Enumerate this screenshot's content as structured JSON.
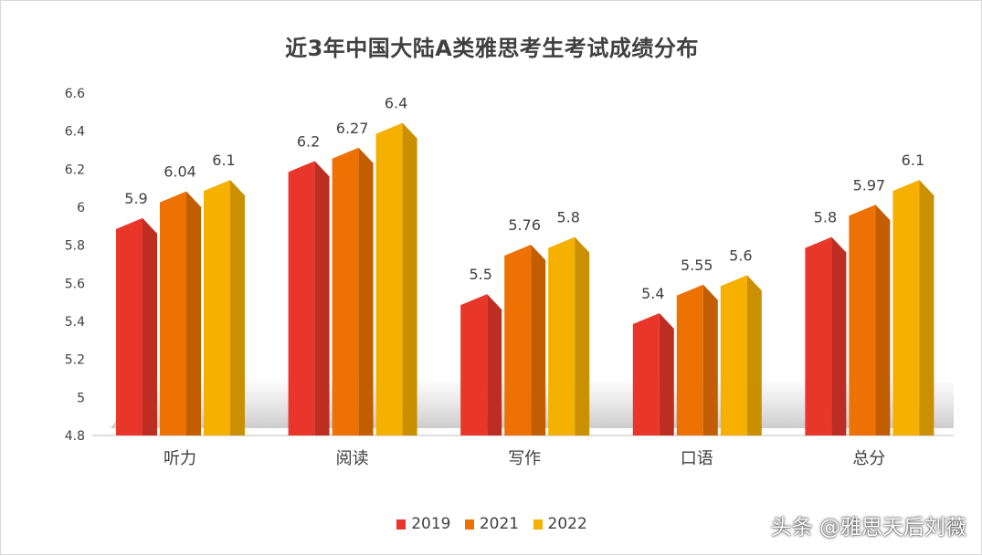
{
  "chart_data": {
    "type": "bar",
    "title": "近3年中国大陆A类雅思考生考试成绩分布",
    "categories": [
      "听力",
      "阅读",
      "写作",
      "口语",
      "总分"
    ],
    "series": [
      {
        "name": "2019",
        "color": "#e8372a",
        "values": [
          5.9,
          6.2,
          5.5,
          5.4,
          5.8
        ],
        "labels": [
          "5.9",
          "6.2",
          "5.5",
          "5.4",
          "5.8"
        ]
      },
      {
        "name": "2021",
        "color": "#ee7203",
        "values": [
          6.04,
          6.27,
          5.76,
          5.55,
          5.97
        ],
        "labels": [
          "6.04",
          "6.27",
          "5.76",
          "5.55",
          "5.97"
        ]
      },
      {
        "name": "2022",
        "color": "#f6b000",
        "values": [
          6.1,
          6.4,
          5.8,
          5.6,
          6.1
        ],
        "labels": [
          "6.1",
          "6.4",
          "5.8",
          "5.6",
          "6.1"
        ]
      }
    ],
    "ylim": [
      4.8,
      6.6
    ],
    "yticks": [
      "4.8",
      "5",
      "5.2",
      "5.4",
      "5.6",
      "5.8",
      "6",
      "6.2",
      "6.4",
      "6.6"
    ],
    "grid": false,
    "legend_position": "bottom"
  },
  "watermark": "头条 @雅思天后刘薇"
}
